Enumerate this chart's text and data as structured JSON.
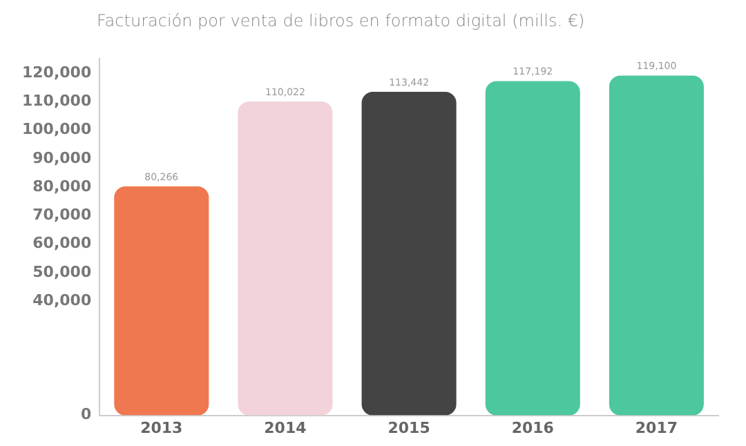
{
  "chart_data": {
    "type": "bar",
    "title": "Facturación por venta de libros en formato digital (mills. €)",
    "categories": [
      "2013",
      "2014",
      "2015",
      "2016",
      "2017"
    ],
    "values": [
      80266,
      110022,
      113442,
      117192,
      119100
    ],
    "colors": [
      "#f07850",
      "#f2d3da",
      "#444444",
      "#4cc79e",
      "#4cc79e"
    ],
    "value_labels": [
      "80,266",
      "110,022",
      "113,442",
      "117,192",
      "119,100"
    ],
    "ylim": [
      0,
      125000
    ],
    "yticks": [
      0,
      {
        "value": 40000,
        "label": "40,000"
      },
      {
        "value": 50000,
        "label": "50,000"
      },
      {
        "value": 60000,
        "label": "60,000"
      },
      {
        "value": 70000,
        "label": "70,000"
      },
      {
        "value": 80000,
        "label": "80,000"
      },
      {
        "value": 90000,
        "label": "90,000"
      },
      {
        "value": 100000,
        "label": "100,000"
      },
      {
        "value": 110000,
        "label": "110,000"
      },
      {
        "value": 120000,
        "label": "120,000"
      }
    ],
    "grid": false,
    "legend": false
  }
}
